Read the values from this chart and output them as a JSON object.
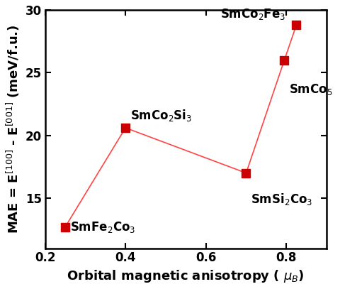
{
  "x": [
    0.25,
    0.4,
    0.7,
    0.795,
    0.825
  ],
  "y": [
    12.7,
    20.6,
    17.0,
    26.0,
    28.8
  ],
  "labels": [
    "SmFe$_2$Co$_3$",
    "SmCo$_2$Si$_3$",
    "SmSi$_2$Co$_3$",
    "SmCo$_5$",
    "SmCo$_2$Fe$_3$"
  ],
  "label_offsets_x": [
    0.012,
    0.012,
    0.012,
    0.012,
    -0.19
  ],
  "label_offsets_y": [
    0.0,
    0.4,
    -1.5,
    -1.8,
    0.3
  ],
  "label_va": [
    "center",
    "bottom",
    "top",
    "top",
    "bottom"
  ],
  "label_ha": [
    "left",
    "left",
    "left",
    "left",
    "left"
  ],
  "line_color": "#FF4444",
  "marker_color": "#CC0000",
  "marker": "s",
  "marker_size": 9,
  "linewidth": 1.2,
  "xlabel": "Orbital magnetic anisotropy ( $\\mu_B$)",
  "ylabel": "MAE = E$^{[100]}$ - E$^{[001]}$ (meV/f.u.)",
  "xlim": [
    0.2,
    0.9
  ],
  "ylim": [
    11,
    30
  ],
  "xticks": [
    0.2,
    0.4,
    0.6,
    0.8
  ],
  "yticks": [
    15,
    20,
    25,
    30
  ],
  "bg_color": "#ffffff",
  "label_fontsize": 12,
  "axis_label_fontsize": 13,
  "tick_fontsize": 12
}
